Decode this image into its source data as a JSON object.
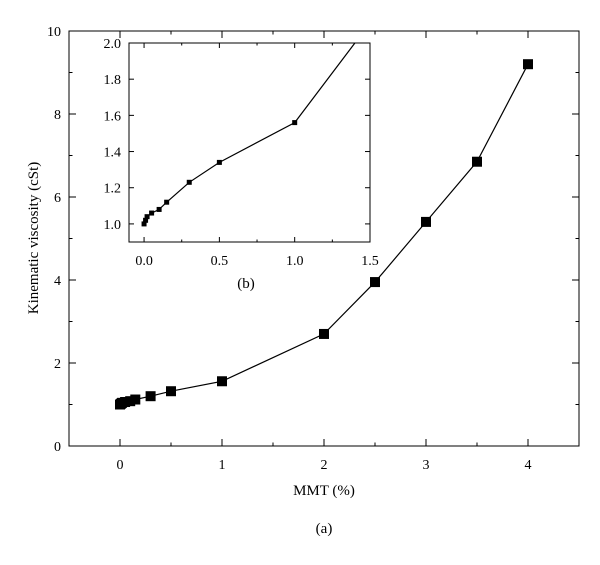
{
  "chart_data": [
    {
      "type": "scatter",
      "panel": "main",
      "title": "",
      "caption": "(a)",
      "xlabel": "MMT (%)",
      "ylabel": "Kinematic viscosity (cSt)",
      "xlim": [
        -0.5,
        4.5
      ],
      "ylim": [
        0,
        10
      ],
      "xticks": [
        0,
        1,
        2,
        3,
        4
      ],
      "yticks": [
        0,
        2,
        4,
        6,
        8,
        10
      ],
      "grid": false,
      "line": true,
      "marker": "square",
      "series": [
        {
          "x": [
            0,
            0.01,
            0.02,
            0.05,
            0.1,
            0.15,
            0.3,
            0.5,
            1.0,
            2.0,
            2.5,
            3.0,
            3.5,
            4.0
          ],
          "y": [
            1.0,
            1.02,
            1.04,
            1.06,
            1.08,
            1.12,
            1.2,
            1.32,
            1.56,
            2.7,
            3.95,
            5.4,
            6.85,
            9.2
          ]
        }
      ]
    },
    {
      "type": "scatter",
      "panel": "inset",
      "title": "",
      "caption": "(b)",
      "xlabel": "",
      "ylabel": "",
      "xlim": [
        -0.1,
        1.5
      ],
      "ylim": [
        0.9,
        2.0
      ],
      "xticks": [
        0.0,
        0.5,
        1.0,
        1.5
      ],
      "yticks": [
        1.0,
        1.2,
        1.4,
        1.6,
        1.8,
        2.0
      ],
      "grid": false,
      "line": true,
      "marker": "square",
      "series": [
        {
          "x": [
            0,
            0.01,
            0.02,
            0.05,
            0.1,
            0.15,
            0.3,
            0.5,
            1.0,
            1.4
          ],
          "y": [
            1.0,
            1.02,
            1.04,
            1.06,
            1.08,
            1.12,
            1.23,
            1.34,
            1.56,
            2.0
          ],
          "markers_on": 9
        }
      ]
    }
  ]
}
